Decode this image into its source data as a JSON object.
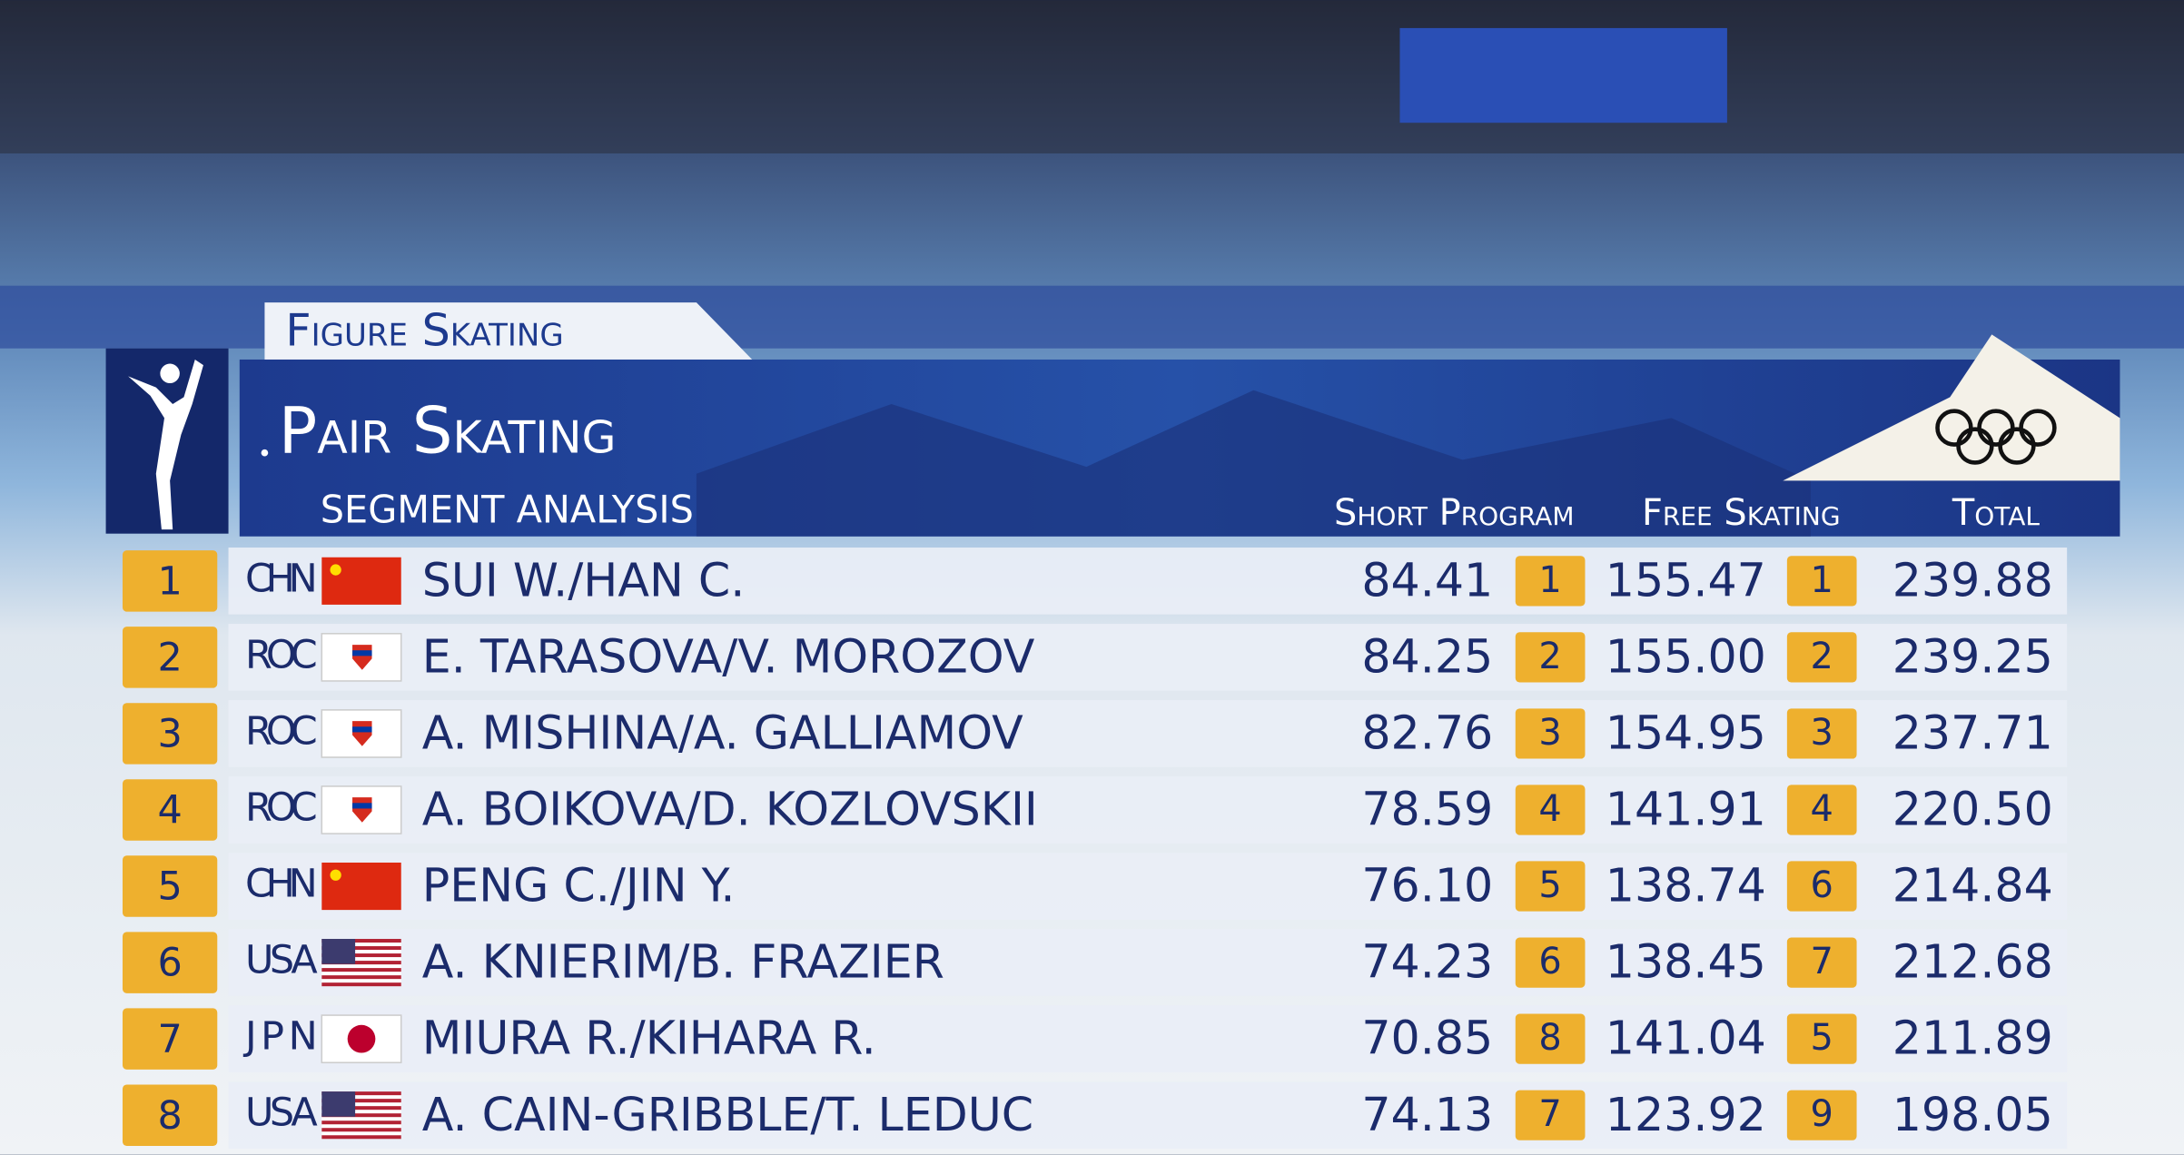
{
  "header": {
    "sport": "Figure Skating",
    "event": "Pair Skating",
    "subtitle": "SEGMENT ANALYSIS"
  },
  "table": {
    "columns": [
      "Short Program",
      "Free Skating",
      "Total"
    ],
    "rows": [
      {
        "rank": 1,
        "noc": "CHN",
        "name": "SUI W./HAN C.",
        "sp": "84.41",
        "sp_rank": 1,
        "fs": "155.47",
        "fs_rank": 1,
        "total": "239.88"
      },
      {
        "rank": 2,
        "noc": "ROC",
        "name": "E. TARASOVA/V. MOROZOV",
        "sp": "84.25",
        "sp_rank": 2,
        "fs": "155.00",
        "fs_rank": 2,
        "total": "239.25"
      },
      {
        "rank": 3,
        "noc": "ROC",
        "name": "A. MISHINA/A. GALLIAMOV",
        "sp": "82.76",
        "sp_rank": 3,
        "fs": "154.95",
        "fs_rank": 3,
        "total": "237.71"
      },
      {
        "rank": 4,
        "noc": "ROC",
        "name": "A. BOIKOVA/D. KOZLOVSKII",
        "sp": "78.59",
        "sp_rank": 4,
        "fs": "141.91",
        "fs_rank": 4,
        "total": "220.50"
      },
      {
        "rank": 5,
        "noc": "CHN",
        "name": "PENG C./JIN Y.",
        "sp": "76.10",
        "sp_rank": 5,
        "fs": "138.74",
        "fs_rank": 6,
        "total": "214.84"
      },
      {
        "rank": 6,
        "noc": "USA",
        "name": "A. KNIERIM/B. FRAZIER",
        "sp": "74.23",
        "sp_rank": 6,
        "fs": "138.45",
        "fs_rank": 7,
        "total": "212.68"
      },
      {
        "rank": 7,
        "noc": "JPN",
        "name": "MIURA R./KIHARA R.",
        "sp": "70.85",
        "sp_rank": 8,
        "fs": "141.04",
        "fs_rank": 5,
        "total": "211.89"
      },
      {
        "rank": 8,
        "noc": "USA",
        "name": "A. CAIN-GRIBBLE/T. LEDUC",
        "sp": "74.13",
        "sp_rank": 7,
        "fs": "123.92",
        "fs_rank": 9,
        "total": "198.05"
      }
    ]
  }
}
